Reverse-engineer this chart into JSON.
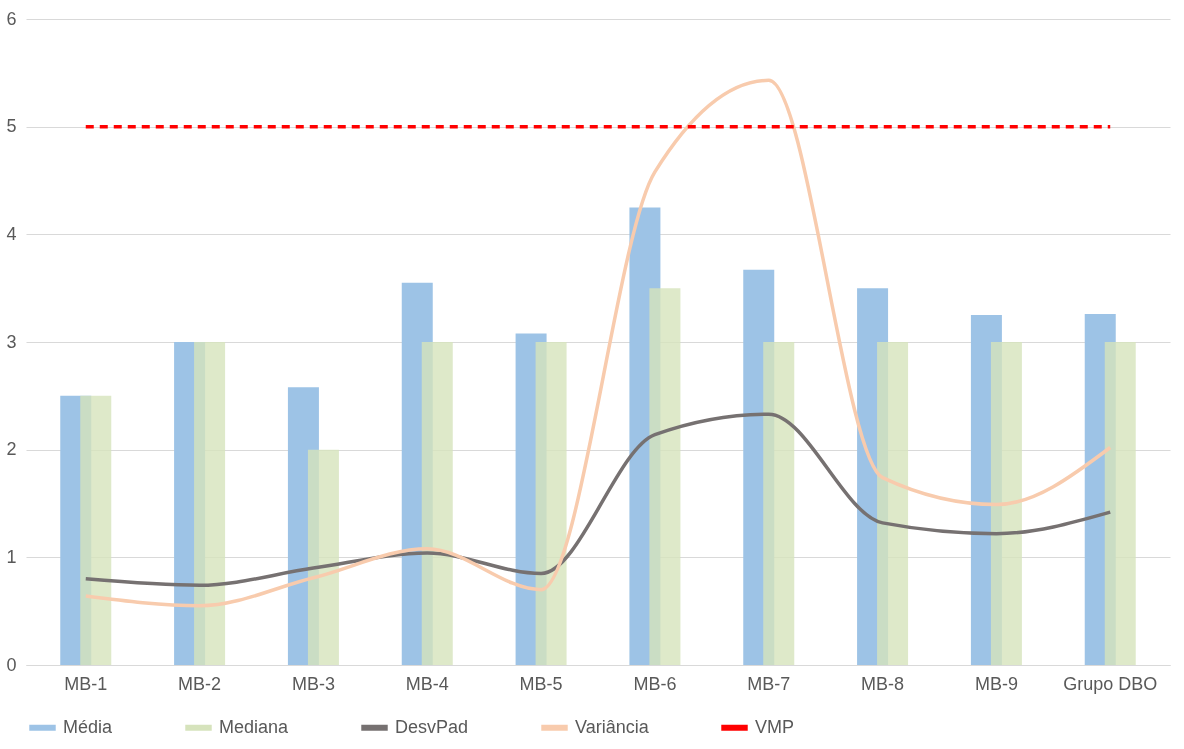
{
  "chart_data": {
    "type": "bar",
    "categories": [
      "MB-1",
      "MB-2",
      "MB-3",
      "MB-4",
      "MB-5",
      "MB-6",
      "MB-7",
      "MB-8",
      "MB-9",
      "Grupo DBO"
    ],
    "series": [
      {
        "name": "Média",
        "color": "#9dc3e6",
        "values": [
          2.5,
          3.0,
          2.58,
          3.55,
          3.08,
          4.25,
          3.67,
          3.5,
          3.25,
          3.26
        ]
      },
      {
        "name": "Mediana",
        "color": "#d6e3bc",
        "values": [
          2.5,
          3.0,
          2.0,
          3.0,
          3.0,
          3.5,
          3.0,
          3.0,
          3.0,
          3.0
        ]
      },
      {
        "name": "DesvPad",
        "color": "#767171",
        "type": "line",
        "line_style": "solid",
        "values": [
          0.8,
          0.74,
          0.9,
          1.04,
          0.85,
          2.14,
          2.33,
          1.32,
          1.22,
          1.42
        ]
      },
      {
        "name": "Variância",
        "color": "#f8cbad",
        "type": "line",
        "line_style": "solid",
        "values": [
          0.64,
          0.55,
          0.81,
          1.08,
          0.7,
          4.58,
          5.43,
          1.74,
          1.49,
          2.02
        ]
      },
      {
        "name": "VMP",
        "color": "#ff0000",
        "type": "line",
        "line_style": "dashed",
        "values": [
          5,
          5,
          5,
          5,
          5,
          5,
          5,
          5,
          5,
          5
        ]
      }
    ],
    "ylim": [
      0,
      6
    ],
    "yticks": [
      0,
      1,
      2,
      3,
      4,
      5,
      6
    ],
    "grid": "y",
    "legend": "bottom",
    "marker": "none"
  }
}
